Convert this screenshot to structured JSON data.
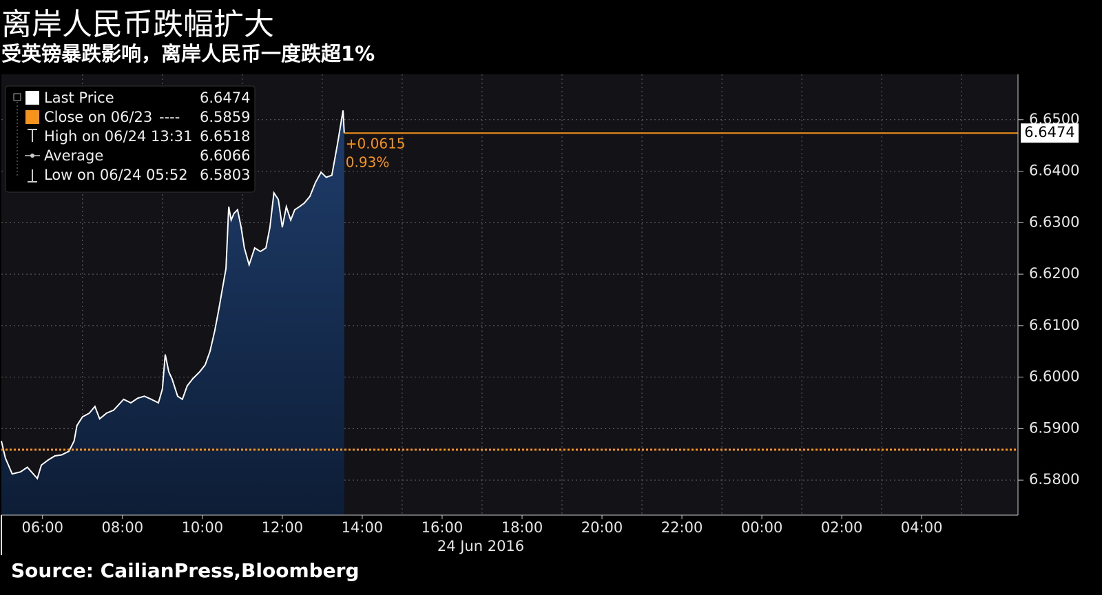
{
  "chart_data": {
    "type": "line",
    "title": "离岸人民币跌幅扩大",
    "subtitle": "受英镑暴跌影响，离岸人民币一度跌超1%",
    "source": "Source: CailianPress,Bloomberg",
    "x_label": "24 Jun 2016",
    "x": [
      4.97,
      5.07,
      5.24,
      5.45,
      5.62,
      5.87,
      5.97,
      6.14,
      6.31,
      6.48,
      6.66,
      6.79,
      6.86,
      7.0,
      7.17,
      7.31,
      7.43,
      7.6,
      7.78,
      7.9,
      8.03,
      8.21,
      8.38,
      8.55,
      8.72,
      8.9,
      9.0,
      9.07,
      9.16,
      9.24,
      9.38,
      9.5,
      9.62,
      9.76,
      9.93,
      10.07,
      10.19,
      10.31,
      10.41,
      10.5,
      10.59,
      10.66,
      10.72,
      10.79,
      10.88,
      10.97,
      11.05,
      11.17,
      11.31,
      11.45,
      11.59,
      11.69,
      11.79,
      11.9,
      12.0,
      12.1,
      12.21,
      12.31,
      12.43,
      12.55,
      12.69,
      12.83,
      12.97,
      13.1,
      13.24,
      13.38,
      13.52,
      13.55
    ],
    "series": [
      {
        "name": "Last Price",
        "color": "#ffffff",
        "values": [
          6.5876,
          6.5843,
          6.5812,
          6.5816,
          6.5825,
          6.5803,
          6.5829,
          6.5839,
          6.5847,
          6.5849,
          6.5856,
          6.5876,
          6.5906,
          6.5923,
          6.593,
          6.5943,
          6.5919,
          6.593,
          6.5936,
          6.5946,
          6.5957,
          6.595,
          6.5959,
          6.5963,
          6.5957,
          6.595,
          6.5977,
          6.6044,
          6.601,
          6.5997,
          6.5963,
          6.5957,
          6.5983,
          6.5997,
          6.601,
          6.6024,
          6.605,
          6.609,
          6.6131,
          6.6171,
          6.6211,
          6.6331,
          6.6305,
          6.6318,
          6.6325,
          6.6291,
          6.6251,
          6.6218,
          6.6251,
          6.6244,
          6.6251,
          6.6291,
          6.6358,
          6.6345,
          6.6291,
          6.6331,
          6.6305,
          6.6325,
          6.6331,
          6.6338,
          6.6351,
          6.6378,
          6.6398,
          6.6388,
          6.6392,
          6.6452,
          6.6518,
          6.6474
        ]
      }
    ],
    "stats": [
      {
        "label": "Close on 06/23",
        "dash": "----",
        "value": 6.5859,
        "color": "#f7931a"
      },
      {
        "label": "High on 06/24 13:31",
        "value": 6.6518
      },
      {
        "label": "Average",
        "value": 6.6066
      },
      {
        "label": "Low on 06/24 05:52",
        "value": 6.5803
      }
    ],
    "change_label": "+0.0615",
    "change_pct_label": "0.93%",
    "last_line_color": "#f7931a",
    "xlim": [
      4.97,
      30.41
    ],
    "ylim": [
      6.5732,
      6.6588
    ],
    "xticks": [
      {
        "value": 6,
        "label": "06:00"
      },
      {
        "value": 8,
        "label": "08:00"
      },
      {
        "value": 10,
        "label": "10:00"
      },
      {
        "value": 12,
        "label": "12:00"
      },
      {
        "value": 14,
        "label": "14:00"
      },
      {
        "value": 16,
        "label": "16:00"
      },
      {
        "value": 18,
        "label": "18:00"
      },
      {
        "value": 20,
        "label": "20:00"
      },
      {
        "value": 22,
        "label": "22:00"
      },
      {
        "value": 24,
        "label": "00:00"
      },
      {
        "value": 26,
        "label": "02:00"
      },
      {
        "value": 28,
        "label": "04:00"
      }
    ],
    "xgrid": [
      7,
      9,
      11,
      13,
      15,
      17,
      19,
      21,
      23,
      25,
      27,
      29
    ],
    "yticks": [
      {
        "value": 6.58,
        "label": "6.5800"
      },
      {
        "value": 6.59,
        "label": "6.5900"
      },
      {
        "value": 6.6,
        "label": "6.6000"
      },
      {
        "value": 6.61,
        "label": "6.6100"
      },
      {
        "value": 6.62,
        "label": "6.6200"
      },
      {
        "value": 6.63,
        "label": "6.6300"
      },
      {
        "value": 6.64,
        "label": "6.6400"
      },
      {
        "value": 6.65,
        "label": "6.6500"
      }
    ],
    "grid": true
  }
}
